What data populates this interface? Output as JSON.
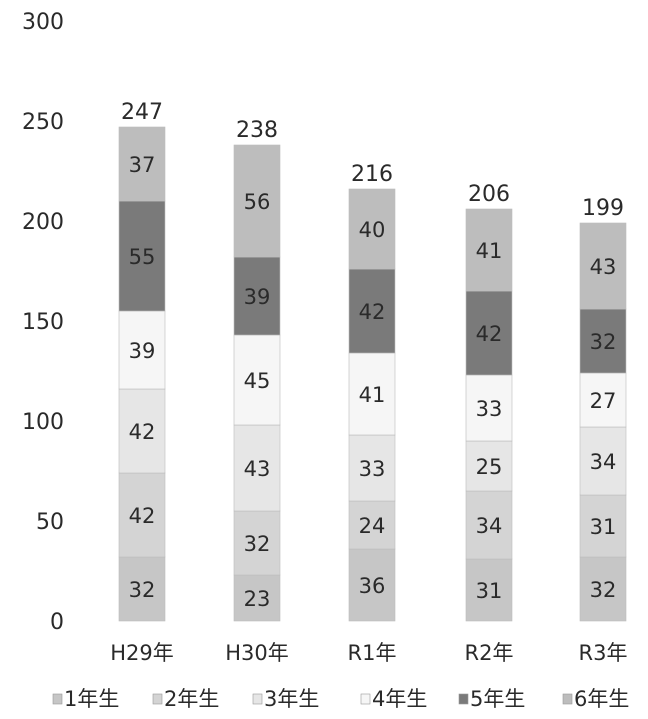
{
  "chart_data": {
    "type": "bar",
    "stacked": true,
    "categories": [
      "H29年",
      "H30年",
      "R1年",
      "R2年",
      "R3年"
    ],
    "series": [
      {
        "name": "1年生",
        "values": [
          32,
          23,
          36,
          31,
          32
        ],
        "color": "#c6c6c6"
      },
      {
        "name": "2年生",
        "values": [
          42,
          32,
          24,
          34,
          31
        ],
        "color": "#d4d4d4"
      },
      {
        "name": "3年生",
        "values": [
          42,
          43,
          33,
          25,
          34
        ],
        "color": "#e6e6e6"
      },
      {
        "name": "4年生",
        "values": [
          39,
          45,
          41,
          33,
          27
        ],
        "color": "#f6f6f6"
      },
      {
        "name": "5年生",
        "values": [
          55,
          39,
          42,
          42,
          32
        ],
        "color": "#7a7a7a"
      },
      {
        "name": "6年生",
        "values": [
          37,
          56,
          40,
          41,
          43
        ],
        "color": "#bdbdbd"
      }
    ],
    "totals": [
      247,
      238,
      216,
      206,
      199
    ],
    "yticks": [
      0,
      50,
      100,
      150,
      200,
      250,
      300
    ],
    "ylim": [
      0,
      300
    ],
    "grid": false,
    "legend_position": "bottom"
  }
}
